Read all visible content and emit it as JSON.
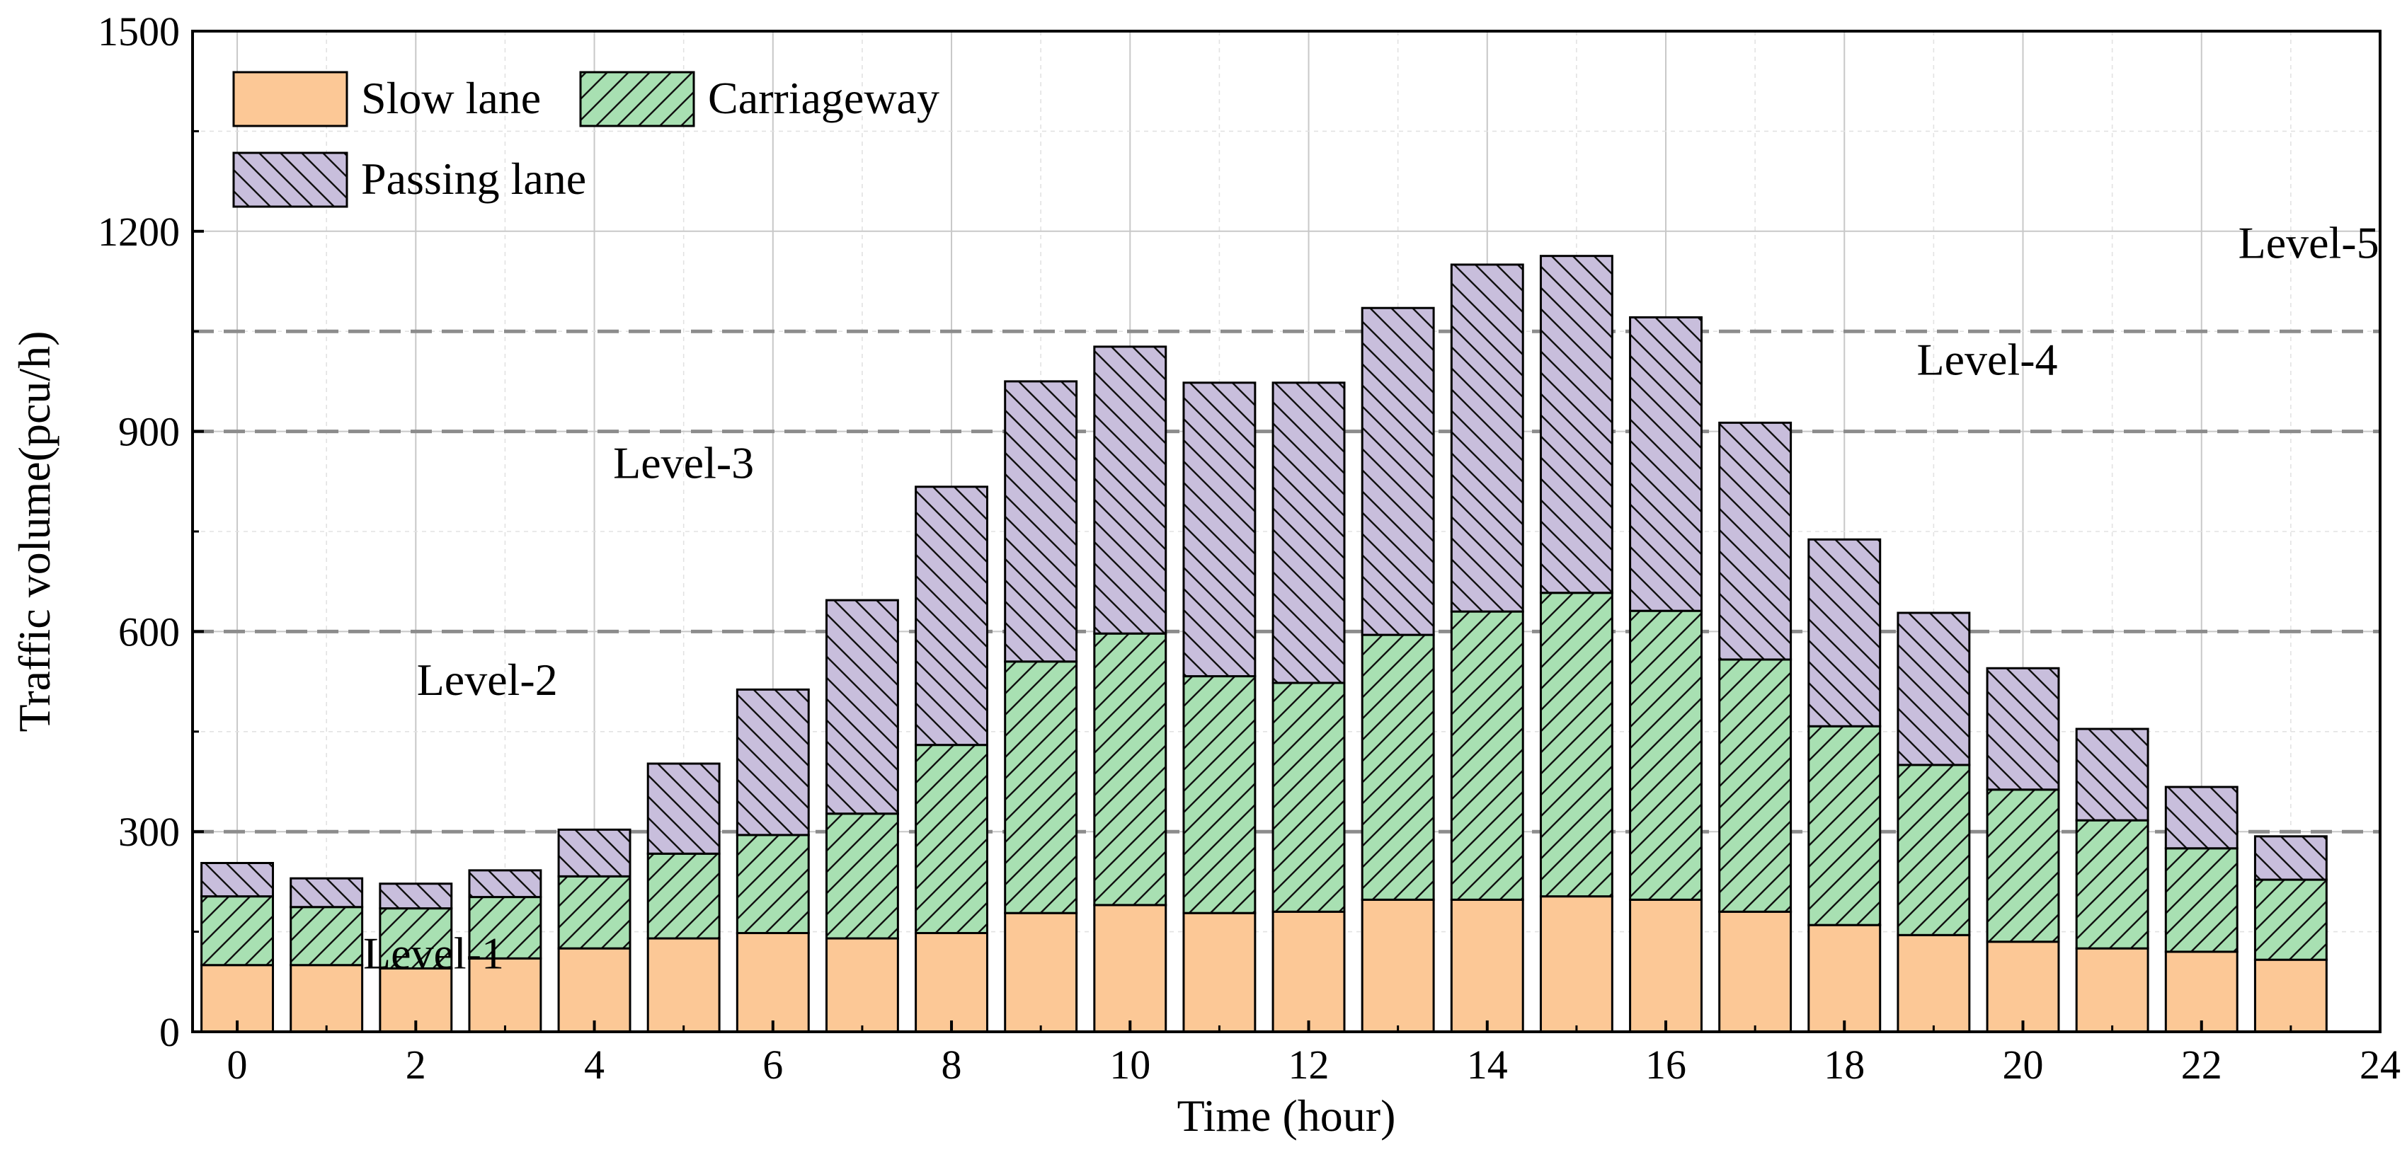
{
  "chart_data": {
    "type": "bar",
    "stacked": true,
    "xlabel": "Time (hour)",
    "ylabel": "Traffic volume(pcu/h)",
    "xlim": [
      -0.5,
      24
    ],
    "ylim": [
      0,
      1500
    ],
    "xticks": [
      0,
      2,
      4,
      6,
      8,
      10,
      12,
      14,
      16,
      18,
      20,
      22,
      24
    ],
    "yticks": [
      0,
      300,
      600,
      900,
      1200,
      1500
    ],
    "grid": true,
    "x": [
      0,
      1,
      2,
      3,
      4,
      5,
      6,
      7,
      8,
      9,
      10,
      11,
      12,
      13,
      14,
      15,
      16,
      17,
      18,
      19,
      20,
      21,
      22,
      23
    ],
    "series": [
      {
        "name": "Slow lane",
        "color": "#fcc896",
        "hatch": "none",
        "values": [
          100,
          100,
          95,
          110,
          125,
          140,
          148,
          140,
          148,
          178,
          190,
          178,
          180,
          198,
          198,
          203,
          198,
          180,
          160,
          145,
          135,
          125,
          120,
          108
        ]
      },
      {
        "name": "Carriageway",
        "color": "#a8e0b2",
        "hatch": "forward",
        "values": [
          103,
          87,
          90,
          92,
          108,
          127,
          147,
          187,
          282,
          377,
          407,
          355,
          343,
          397,
          432,
          455,
          433,
          378,
          298,
          255,
          228,
          192,
          155,
          120
        ]
      },
      {
        "name": "Passing lane",
        "color": "#c8bedc",
        "hatch": "backward",
        "values": [
          50,
          43,
          37,
          40,
          70,
          135,
          218,
          320,
          387,
          420,
          430,
          440,
          450,
          490,
          520,
          505,
          440,
          355,
          280,
          228,
          182,
          137,
          92,
          65
        ]
      }
    ],
    "level_thresholds": [
      300,
      600,
      900,
      1050
    ],
    "level_labels": [
      {
        "text": "Level-1",
        "x": 2.2,
        "y": 95
      },
      {
        "text": "Level-2",
        "x": 2.8,
        "y": 505
      },
      {
        "text": "Level-3",
        "x": 5.0,
        "y": 830
      },
      {
        "text": "Level-4",
        "x": 19.6,
        "y": 985
      },
      {
        "text": "Level-5",
        "x": 23.2,
        "y": 1160
      }
    ],
    "legend_position": "top-left"
  }
}
